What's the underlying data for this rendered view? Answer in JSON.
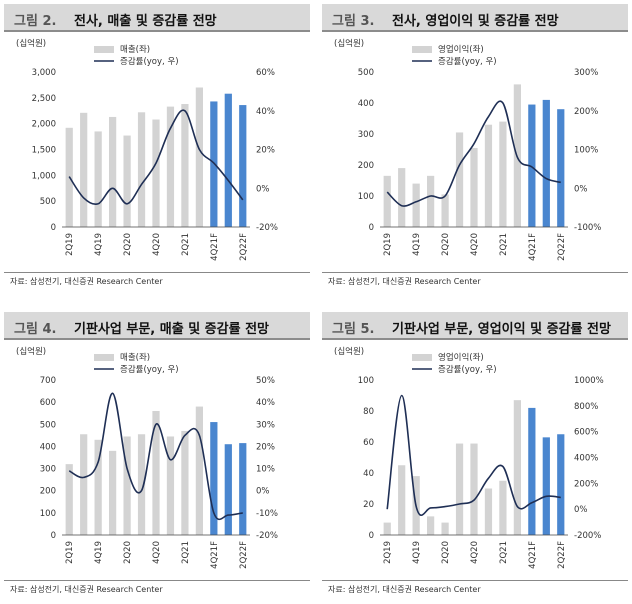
{
  "panels": [
    {
      "fig": "그림 2.",
      "title": "전사, 매출 및 증감률 전망",
      "source": "자료: 삼성전기, 대신증권 Research Center"
    },
    {
      "fig": "그림 3.",
      "title": "전사, 영업이익 및 증감률 전망",
      "source": "자료: 삼성전기, 대신증권 Research Center"
    },
    {
      "fig": "그림 4.",
      "title": "기판사업 부문, 매출 및 증감률 전망",
      "source": "자료: 삼성전기, 대신증권 Research Center"
    },
    {
      "fig": "그림 5.",
      "title": "기판사업 부문, 영업이익 및 증감률 전망",
      "source": "자료: 삼성전기, 대신증권 Research Center"
    }
  ],
  "chart_data": [
    {
      "type": "bar",
      "unit": "(십억원)",
      "xticklabels": [
        "2Q19",
        "4Q19",
        "2Q20",
        "4Q20",
        "2Q21",
        "4Q21F",
        "2Q22F"
      ],
      "ylim": [
        0,
        3000
      ],
      "yticks": [
        0,
        500,
        1000,
        1500,
        2000,
        2500,
        3000
      ],
      "yticklabels": [
        "0",
        "500",
        "1,000",
        "1,500",
        "2,000",
        "2,500",
        "3,000"
      ],
      "y2lim": [
        -20,
        60
      ],
      "y2ticks": [
        -20,
        0,
        20,
        40,
        60
      ],
      "y2ticklabels": [
        "-20%",
        "0%",
        "20%",
        "40%",
        "60%"
      ],
      "series": [
        {
          "name": "매출(좌)",
          "axis": "left",
          "values": [
            1920,
            2210,
            1850,
            2130,
            1770,
            2220,
            2080,
            2330,
            2380,
            2700,
            2430,
            2580,
            2360
          ],
          "forecast_from": 10
        },
        {
          "name": "증감률(yoy, 우)",
          "axis": "right",
          "values": [
            6,
            -5,
            -8,
            0,
            -8,
            2,
            13,
            31,
            40,
            20,
            13,
            4,
            -6
          ]
        }
      ],
      "legend": [
        "매출(좌)",
        "증감률(yoy, 우)"
      ]
    },
    {
      "type": "bar",
      "unit": "(십억원)",
      "xticklabels": [
        "2Q19",
        "4Q19",
        "2Q20",
        "4Q20",
        "2Q21",
        "4Q21F",
        "2Q22F"
      ],
      "ylim": [
        0,
        500
      ],
      "yticks": [
        0,
        100,
        200,
        300,
        400,
        500
      ],
      "yticklabels": [
        "0",
        "100",
        "200",
        "300",
        "400",
        "500"
      ],
      "y2lim": [
        -100,
        300
      ],
      "y2ticks": [
        -100,
        0,
        100,
        200,
        300
      ],
      "y2ticklabels": [
        "-100%",
        "0%",
        "100%",
        "200%",
        "300%"
      ],
      "series": [
        {
          "name": "영업이익(좌)",
          "axis": "left",
          "values": [
            165,
            190,
            140,
            165,
            105,
            305,
            255,
            330,
            340,
            460,
            395,
            410,
            380
          ],
          "forecast_from": 10
        },
        {
          "name": "증감률(yoy, 우)",
          "axis": "right",
          "values": [
            -10,
            -45,
            -35,
            -20,
            -20,
            60,
            115,
            185,
            220,
            80,
            55,
            25,
            15
          ]
        }
      ],
      "legend": [
        "영업이익(좌)",
        "증감률(yoy, 우)"
      ]
    },
    {
      "type": "bar",
      "unit": "(십억원)",
      "xticklabels": [
        "2Q19",
        "4Q19",
        "2Q20",
        "4Q20",
        "2Q21",
        "4Q21F",
        "2Q22F"
      ],
      "ylim": [
        0,
        700
      ],
      "yticks": [
        0,
        100,
        200,
        300,
        400,
        500,
        600,
        700
      ],
      "yticklabels": [
        "0",
        "100",
        "200",
        "300",
        "400",
        "500",
        "600",
        "700"
      ],
      "y2lim": [
        -20,
        50
      ],
      "y2ticks": [
        -20,
        -10,
        0,
        10,
        20,
        30,
        40,
        50
      ],
      "y2ticklabels": [
        "-20%",
        "-10%",
        "0%",
        "10%",
        "20%",
        "30%",
        "40%",
        "50%"
      ],
      "series": [
        {
          "name": "매출(좌)",
          "axis": "left",
          "values": [
            320,
            455,
            430,
            380,
            445,
            455,
            560,
            445,
            470,
            580,
            510,
            410,
            415
          ],
          "forecast_from": 10
        },
        {
          "name": "증감률(yoy, 우)",
          "axis": "right",
          "values": [
            9,
            6,
            13,
            44,
            10,
            0,
            30,
            14,
            25,
            25,
            -10,
            -11,
            -10
          ]
        }
      ],
      "legend": [
        "매출(좌)",
        "증감률(yoy, 우)"
      ]
    },
    {
      "type": "bar",
      "unit": "(십억원)",
      "xticklabels": [
        "2Q19",
        "4Q19",
        "2Q20",
        "4Q20",
        "2Q21",
        "4Q21F",
        "2Q22F"
      ],
      "ylim": [
        0,
        100
      ],
      "yticks": [
        0,
        20,
        40,
        60,
        80,
        100
      ],
      "yticklabels": [
        "0",
        "20",
        "40",
        "60",
        "80",
        "100"
      ],
      "y2lim": [
        -200,
        1000
      ],
      "y2ticks": [
        -200,
        0,
        200,
        400,
        600,
        800,
        1000
      ],
      "y2ticklabels": [
        "-200%",
        "0%",
        "200%",
        "400%",
        "600%",
        "800%",
        "1000%"
      ],
      "series": [
        {
          "name": "영업이익(좌)",
          "axis": "left",
          "values": [
            8,
            45,
            38,
            12,
            8,
            59,
            59,
            30,
            35,
            87,
            82,
            63,
            65
          ],
          "forecast_from": 10
        },
        {
          "name": "증감률(yoy, 우)",
          "axis": "right",
          "values": [
            0,
            880,
            20,
            10,
            20,
            40,
            70,
            240,
            330,
            20,
            50,
            100,
            90
          ]
        }
      ],
      "legend": [
        "영업이익(좌)",
        "증감률(yoy, 우)"
      ]
    }
  ]
}
